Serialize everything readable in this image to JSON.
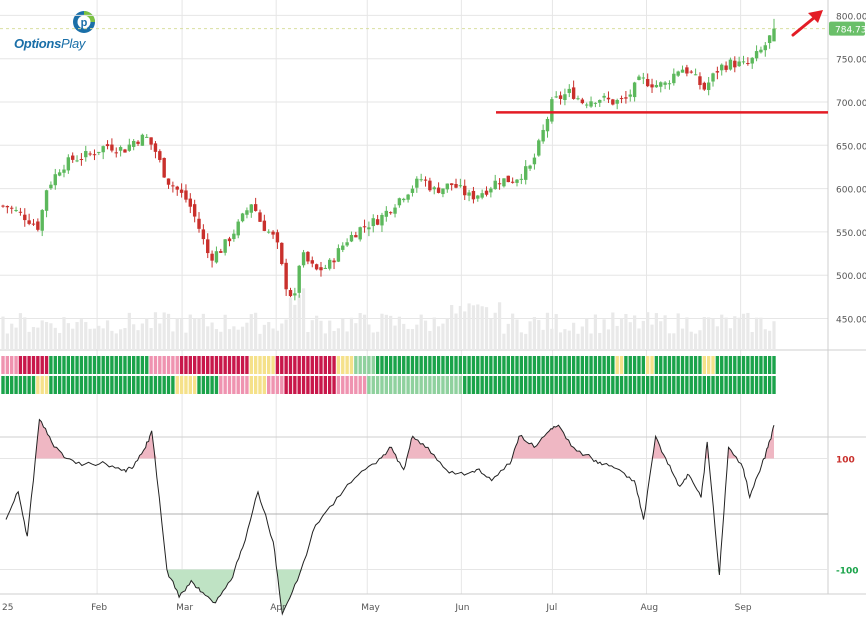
{
  "brand": {
    "name_part1": "Options",
    "name_part2": "Play",
    "logo_letter": "p"
  },
  "colors": {
    "up": "#5cb85c",
    "down": "#c9302c",
    "support_line": "#e31c25",
    "arrow": "#e31c25",
    "price_tag": "#6abf69",
    "grid": "#e6e6e6",
    "volume": "#e9e9e9",
    "osc_pos_fill": "#efb7c3",
    "osc_neg_fill": "#bfe3c4",
    "signal_green": "#1aa34a",
    "signal_light_green": "#8fd19e",
    "signal_red": "#c8174a",
    "signal_pink": "#ef93b0",
    "signal_yellow": "#f5e18a"
  },
  "price_label": "784.73",
  "support_level": 688,
  "chart_data": {
    "type": "candlestick",
    "y_axis": {
      "ticks": [
        "800.00",
        "750.00",
        "700.00",
        "650.00",
        "600.00",
        "550.00",
        "500.00",
        "450.00"
      ],
      "range": [
        420,
        810
      ]
    },
    "x_axis": {
      "labels": [
        "25",
        "Feb",
        "Mar",
        "Apr",
        "May",
        "Jun",
        "Jul",
        "Aug",
        "Sep"
      ]
    },
    "oscillator": {
      "ticks": [
        "100",
        "-100"
      ],
      "range": [
        -180,
        190
      ]
    },
    "close_path": [
      {
        "d": "2025-01-02",
        "c": 580
      },
      {
        "d": "2025-01-08",
        "c": 568
      },
      {
        "d": "2025-01-13",
        "c": 555
      },
      {
        "d": "2025-01-15",
        "c": 598
      },
      {
        "d": "2025-01-20",
        "c": 625
      },
      {
        "d": "2025-01-24",
        "c": 634
      },
      {
        "d": "2025-01-30",
        "c": 640
      },
      {
        "d": "2025-02-04",
        "c": 650
      },
      {
        "d": "2025-02-10",
        "c": 645
      },
      {
        "d": "2025-02-13",
        "c": 655
      },
      {
        "d": "2025-02-17",
        "c": 660
      },
      {
        "d": "2025-02-20",
        "c": 645
      },
      {
        "d": "2025-02-24",
        "c": 610
      },
      {
        "d": "2025-02-27",
        "c": 600
      },
      {
        "d": "2025-03-03",
        "c": 585
      },
      {
        "d": "2025-03-06",
        "c": 560
      },
      {
        "d": "2025-03-10",
        "c": 520
      },
      {
        "d": "2025-03-14",
        "c": 530
      },
      {
        "d": "2025-03-19",
        "c": 555
      },
      {
        "d": "2025-03-24",
        "c": 585
      },
      {
        "d": "2025-03-27",
        "c": 560
      },
      {
        "d": "2025-04-01",
        "c": 540
      },
      {
        "d": "2025-04-04",
        "c": 490
      },
      {
        "d": "2025-04-07",
        "c": 470
      },
      {
        "d": "2025-04-09",
        "c": 525
      },
      {
        "d": "2025-04-14",
        "c": 505
      },
      {
        "d": "2025-04-18",
        "c": 510
      },
      {
        "d": "2025-04-24",
        "c": 540
      },
      {
        "d": "2025-04-29",
        "c": 555
      },
      {
        "d": "2025-05-05",
        "c": 565
      },
      {
        "d": "2025-05-12",
        "c": 590
      },
      {
        "d": "2025-05-19",
        "c": 612
      },
      {
        "d": "2025-05-23",
        "c": 598
      },
      {
        "d": "2025-05-29",
        "c": 605
      },
      {
        "d": "2025-06-04",
        "c": 590
      },
      {
        "d": "2025-06-09",
        "c": 598
      },
      {
        "d": "2025-06-13",
        "c": 610
      },
      {
        "d": "2025-06-18",
        "c": 610
      },
      {
        "d": "2025-06-24",
        "c": 625
      },
      {
        "d": "2025-06-27",
        "c": 655
      },
      {
        "d": "2025-07-01",
        "c": 700
      },
      {
        "d": "2025-07-07",
        "c": 712
      },
      {
        "d": "2025-07-11",
        "c": 700
      },
      {
        "d": "2025-07-16",
        "c": 705
      },
      {
        "d": "2025-07-21",
        "c": 700
      },
      {
        "d": "2025-07-25",
        "c": 702
      },
      {
        "d": "2025-07-30",
        "c": 726
      },
      {
        "d": "2025-08-04",
        "c": 720
      },
      {
        "d": "2025-08-07",
        "c": 720
      },
      {
        "d": "2025-08-12",
        "c": 740
      },
      {
        "d": "2025-08-15",
        "c": 735
      },
      {
        "d": "2025-08-20",
        "c": 715
      },
      {
        "d": "2025-08-25",
        "c": 740
      },
      {
        "d": "2025-08-29",
        "c": 745
      },
      {
        "d": "2025-09-03",
        "c": 742
      },
      {
        "d": "2025-09-08",
        "c": 760
      },
      {
        "d": "2025-09-10",
        "c": 770
      },
      {
        "d": "2025-09-12",
        "c": 784.73
      }
    ],
    "oscillator_path": [
      {
        "d": "2025-01-02",
        "v": -10
      },
      {
        "d": "2025-01-06",
        "v": 40
      },
      {
        "d": "2025-01-09",
        "v": -40
      },
      {
        "d": "2025-01-13",
        "v": 170
      },
      {
        "d": "2025-01-17",
        "v": 130
      },
      {
        "d": "2025-01-22",
        "v": 100
      },
      {
        "d": "2025-01-28",
        "v": 90
      },
      {
        "d": "2025-02-04",
        "v": 90
      },
      {
        "d": "2025-02-10",
        "v": 80
      },
      {
        "d": "2025-02-13",
        "v": 85
      },
      {
        "d": "2025-02-17",
        "v": 120
      },
      {
        "d": "2025-02-19",
        "v": 150
      },
      {
        "d": "2025-02-24",
        "v": -100
      },
      {
        "d": "2025-02-28",
        "v": -150
      },
      {
        "d": "2025-03-04",
        "v": -120
      },
      {
        "d": "2025-03-07",
        "v": -140
      },
      {
        "d": "2025-03-12",
        "v": -160
      },
      {
        "d": "2025-03-17",
        "v": -120
      },
      {
        "d": "2025-03-21",
        "v": -60
      },
      {
        "d": "2025-03-26",
        "v": 40
      },
      {
        "d": "2025-03-31",
        "v": -50
      },
      {
        "d": "2025-04-03",
        "v": -180
      },
      {
        "d": "2025-04-08",
        "v": -120
      },
      {
        "d": "2025-04-14",
        "v": -20
      },
      {
        "d": "2025-04-21",
        "v": 30
      },
      {
        "d": "2025-04-28",
        "v": 70
      },
      {
        "d": "2025-05-05",
        "v": 100
      },
      {
        "d": "2025-05-09",
        "v": 120
      },
      {
        "d": "2025-05-13",
        "v": 80
      },
      {
        "d": "2025-05-16",
        "v": 140
      },
      {
        "d": "2025-05-21",
        "v": 120
      },
      {
        "d": "2025-05-27",
        "v": 80
      },
      {
        "d": "2025-06-02",
        "v": 70
      },
      {
        "d": "2025-06-06",
        "v": 80
      },
      {
        "d": "2025-06-11",
        "v": 60
      },
      {
        "d": "2025-06-17",
        "v": 90
      },
      {
        "d": "2025-06-20",
        "v": 140
      },
      {
        "d": "2025-06-25",
        "v": 120
      },
      {
        "d": "2025-06-30",
        "v": 150
      },
      {
        "d": "2025-07-03",
        "v": 160
      },
      {
        "d": "2025-07-08",
        "v": 120
      },
      {
        "d": "2025-07-14",
        "v": 100
      },
      {
        "d": "2025-07-18",
        "v": 90
      },
      {
        "d": "2025-07-23",
        "v": 80
      },
      {
        "d": "2025-07-28",
        "v": 60
      },
      {
        "d": "2025-07-31",
        "v": -10
      },
      {
        "d": "2025-08-04",
        "v": 140
      },
      {
        "d": "2025-08-08",
        "v": 90
      },
      {
        "d": "2025-08-12",
        "v": 50
      },
      {
        "d": "2025-08-15",
        "v": 70
      },
      {
        "d": "2025-08-19",
        "v": 30
      },
      {
        "d": "2025-08-21",
        "v": 130
      },
      {
        "d": "2025-08-25",
        "v": -110
      },
      {
        "d": "2025-08-28",
        "v": 120
      },
      {
        "d": "2025-09-02",
        "v": 80
      },
      {
        "d": "2025-09-04",
        "v": 30
      },
      {
        "d": "2025-09-08",
        "v": 90
      },
      {
        "d": "2025-09-10",
        "v": 120
      },
      {
        "d": "2025-09-12",
        "v": 160
      }
    ]
  }
}
